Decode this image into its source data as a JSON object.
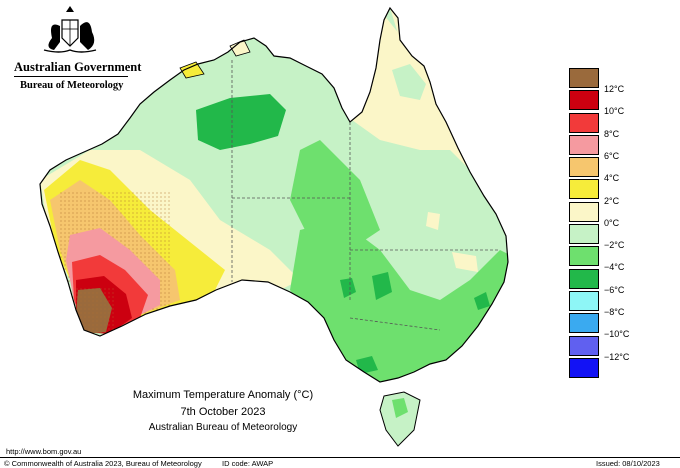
{
  "header": {
    "gov_name": "Australian Government",
    "bureau_name": "Bureau of Meteorology"
  },
  "caption": {
    "title": "Maximum Temperature Anomaly (°C)",
    "date": "7th October 2023",
    "agency": "Australian Bureau of Meteorology"
  },
  "footer": {
    "url": "http://www.bom.gov.au",
    "copyright": "© Commonwealth of Australia 2023, Bureau of Meteorology",
    "id_code": "ID code: AWAP",
    "issued": "Issued: 08/10/2023"
  },
  "legend": {
    "labels": [
      "12°C",
      "10°C",
      "8°C",
      "6°C",
      "4°C",
      "2°C",
      "0°C",
      "−2°C",
      "−4°C",
      "−6°C",
      "−8°C",
      "−10°C",
      "−12°C"
    ],
    "colors": [
      "#9a6a3c",
      "#cc0010",
      "#f23a3a",
      "#f59aa0",
      "#f6c66e",
      "#f6ec3a",
      "#fbf6c8",
      "#c6f2c6",
      "#6ee06e",
      "#22b84a",
      "#8ef6f6",
      "#3aaaf0",
      "#6060f0",
      "#1212f5"
    ]
  },
  "colors": {
    "coast": "#000000",
    "state_border": "#555555"
  },
  "icons": {
    "crest": "coat-of-arms-icon"
  }
}
